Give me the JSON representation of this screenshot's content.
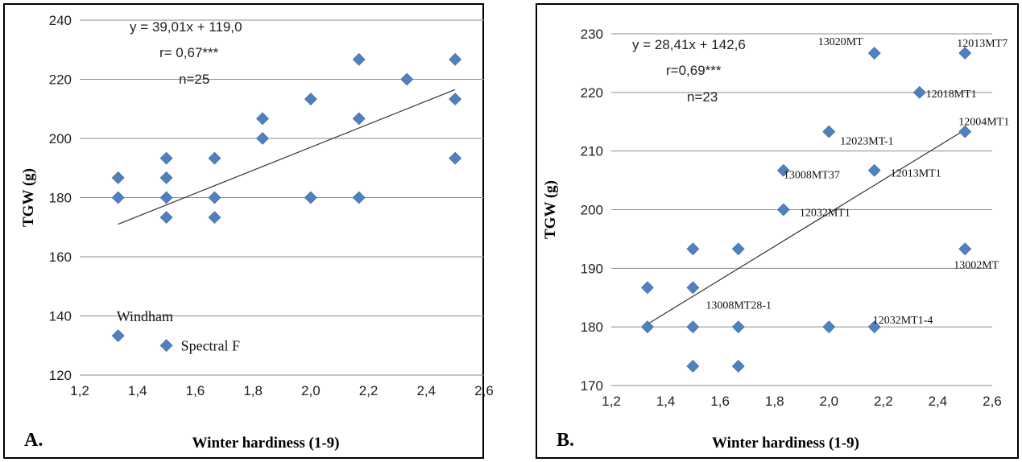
{
  "chart_data": [
    {
      "type": "scatter",
      "panel_label": "A.",
      "xlabel": "Winter hardiness (1-9)",
      "ylabel": "TGW (g)",
      "xlim": [
        1.2,
        2.6
      ],
      "ylim": [
        120,
        240
      ],
      "xticks": [
        "1,2",
        "1,4",
        "1,6",
        "1,8",
        "2,0",
        "2,2",
        "2,4",
        "2,6"
      ],
      "yticks": [
        "120",
        "140",
        "160",
        "180",
        "200",
        "220",
        "240"
      ],
      "grid": "horizontal",
      "marker_color": "#4f81bd",
      "trendline_color": "#333333",
      "annotations": [
        "y = 39,01x + 119,0",
        "r= 0,67***",
        "n=25"
      ],
      "trendline": {
        "slope": 39.01,
        "intercept": 119.0,
        "x_range": [
          1.333,
          2.5
        ]
      },
      "points": [
        {
          "x": 1.333,
          "y": 186.7
        },
        {
          "x": 1.333,
          "y": 180.0
        },
        {
          "x": 1.333,
          "y": 133.3
        },
        {
          "x": 1.5,
          "y": 193.3
        },
        {
          "x": 1.5,
          "y": 186.7
        },
        {
          "x": 1.5,
          "y": 180.0
        },
        {
          "x": 1.5,
          "y": 173.3
        },
        {
          "x": 1.667,
          "y": 193.3
        },
        {
          "x": 1.667,
          "y": 180.0
        },
        {
          "x": 1.667,
          "y": 173.3
        },
        {
          "x": 1.833,
          "y": 206.7
        },
        {
          "x": 1.833,
          "y": 200.0
        },
        {
          "x": 2.0,
          "y": 213.3
        },
        {
          "x": 2.0,
          "y": 180.0
        },
        {
          "x": 2.167,
          "y": 226.7
        },
        {
          "x": 2.167,
          "y": 206.7
        },
        {
          "x": 2.167,
          "y": 180.0
        },
        {
          "x": 2.333,
          "y": 220.0
        },
        {
          "x": 2.5,
          "y": 226.7
        },
        {
          "x": 2.5,
          "y": 213.3
        },
        {
          "x": 2.5,
          "y": 193.3
        }
      ],
      "point_labels": [
        {
          "text": "Windham",
          "x": 1.333,
          "y": 133.3
        }
      ],
      "legend_marker": {
        "x": 1.5,
        "y": 130.0
      },
      "legend_label": "Spectral F"
    },
    {
      "type": "scatter",
      "panel_label": "B.",
      "xlabel": "Winter hardiness (1-9)",
      "ylabel": "TGW (g)",
      "xlim": [
        1.2,
        2.6
      ],
      "ylim": [
        170,
        230
      ],
      "xticks": [
        "1,2",
        "1,4",
        "1,6",
        "1,8",
        "2,0",
        "2,2",
        "2,4",
        "2,6"
      ],
      "yticks": [
        "170",
        "180",
        "190",
        "200",
        "210",
        "220",
        "230"
      ],
      "grid": "horizontal",
      "marker_color": "#4f81bd",
      "trendline_color": "#333333",
      "annotations": [
        "y = 28,41x + 142,6",
        "r=0,69***",
        "n=23"
      ],
      "trendline": {
        "slope": 28.41,
        "intercept": 142.6,
        "x_range": [
          1.333,
          2.5
        ]
      },
      "points": [
        {
          "x": 1.333,
          "y": 186.7
        },
        {
          "x": 1.333,
          "y": 180.0
        },
        {
          "x": 1.5,
          "y": 193.3
        },
        {
          "x": 1.5,
          "y": 186.7
        },
        {
          "x": 1.5,
          "y": 180.0
        },
        {
          "x": 1.5,
          "y": 173.3
        },
        {
          "x": 1.667,
          "y": 193.3
        },
        {
          "x": 1.667,
          "y": 180.0
        },
        {
          "x": 1.667,
          "y": 173.3
        },
        {
          "x": 1.833,
          "y": 206.7
        },
        {
          "x": 1.833,
          "y": 200.0
        },
        {
          "x": 2.0,
          "y": 213.3
        },
        {
          "x": 2.0,
          "y": 180.0
        },
        {
          "x": 2.167,
          "y": 226.7
        },
        {
          "x": 2.167,
          "y": 206.7
        },
        {
          "x": 2.167,
          "y": 180.0
        },
        {
          "x": 2.333,
          "y": 220.0
        },
        {
          "x": 2.5,
          "y": 226.7
        },
        {
          "x": 2.5,
          "y": 213.3
        },
        {
          "x": 2.5,
          "y": 193.3
        }
      ],
      "point_labels": [
        {
          "text": "13020MT",
          "x": 2.167,
          "y": 226.7
        },
        {
          "text": "12013MT7",
          "x": 2.5,
          "y": 226.7
        },
        {
          "text": "12018MT1",
          "x": 2.333,
          "y": 220.0
        },
        {
          "text": "12004MT1",
          "x": 2.5,
          "y": 213.3
        },
        {
          "text": "12023MT-1",
          "x": 2.0,
          "y": 213.3
        },
        {
          "text": "13008MT37",
          "x": 1.833,
          "y": 206.7
        },
        {
          "text": "12013MT1",
          "x": 2.167,
          "y": 206.7
        },
        {
          "text": "12032MT1",
          "x": 1.833,
          "y": 200.0
        },
        {
          "text": "13002MT",
          "x": 2.5,
          "y": 193.3
        },
        {
          "text": "13008MT28-1",
          "x": 1.5,
          "y": 186.7
        },
        {
          "text": "12032MT1-4",
          "x": 2.167,
          "y": 180.0
        }
      ]
    }
  ]
}
